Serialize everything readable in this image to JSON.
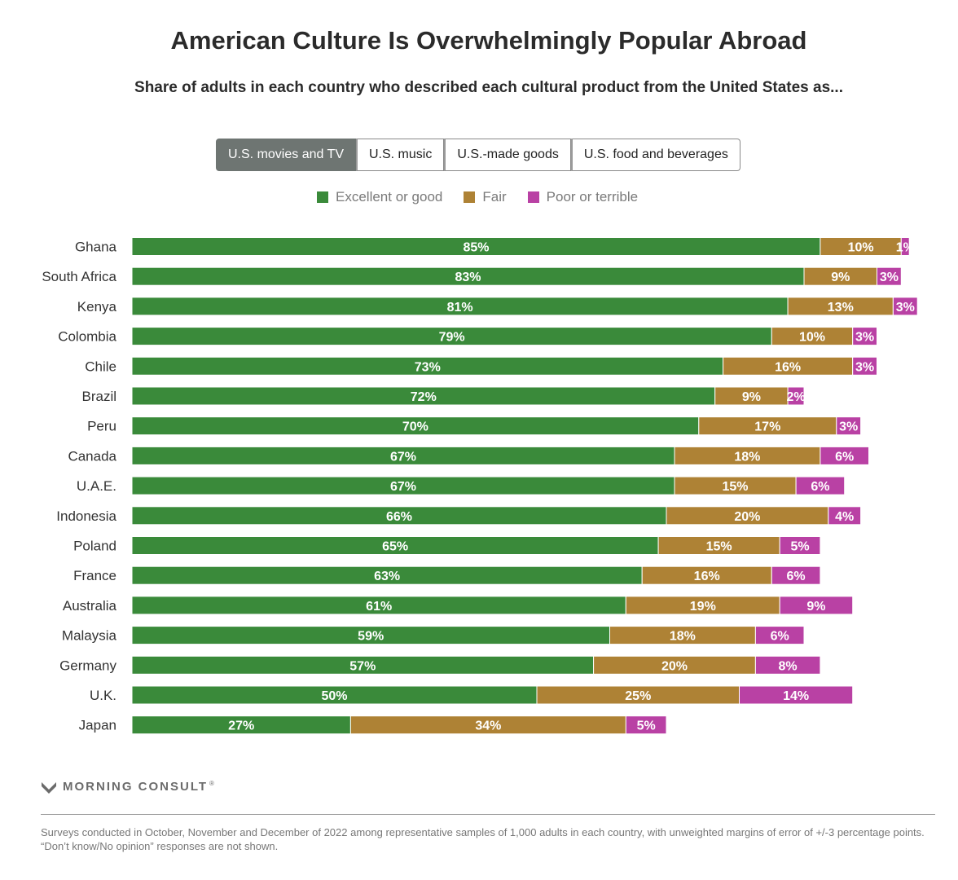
{
  "title": "American Culture Is Overwhelmingly Popular Abroad",
  "subtitle": "Share of adults in each country who described each cultural product from the United States as...",
  "tabs": [
    {
      "label": "U.S. movies and TV",
      "active": true
    },
    {
      "label": "U.S. music",
      "active": false
    },
    {
      "label": "U.S.-made goods",
      "active": false
    },
    {
      "label": "U.S. food and beverages",
      "active": false
    }
  ],
  "legend": [
    {
      "label": "Excellent or good",
      "color": "#3a8a3a"
    },
    {
      "label": "Fair",
      "color": "#ae8235"
    },
    {
      "label": "Poor or terrible",
      "color": "#b941a4"
    }
  ],
  "chart_data": {
    "type": "bar",
    "orientation": "horizontal",
    "stacked": true,
    "categories": [
      "Ghana",
      "South Africa",
      "Kenya",
      "Colombia",
      "Chile",
      "Brazil",
      "Peru",
      "Canada",
      "U.A.E.",
      "Indonesia",
      "Poland",
      "France",
      "Australia",
      "Malaysia",
      "Germany",
      "U.K.",
      "Japan"
    ],
    "series": [
      {
        "name": "Excellent or good",
        "color": "#3a8a3a",
        "values": [
          85,
          83,
          81,
          79,
          73,
          72,
          70,
          67,
          67,
          66,
          65,
          63,
          61,
          59,
          57,
          50,
          27
        ]
      },
      {
        "name": "Fair",
        "color": "#ae8235",
        "values": [
          10,
          9,
          13,
          10,
          16,
          9,
          17,
          18,
          15,
          20,
          15,
          16,
          19,
          18,
          20,
          25,
          34
        ]
      },
      {
        "name": "Poor or terrible",
        "color": "#b941a4",
        "values": [
          1,
          3,
          3,
          3,
          3,
          2,
          3,
          6,
          6,
          4,
          5,
          6,
          9,
          6,
          8,
          14,
          5
        ]
      }
    ],
    "value_suffix": "%",
    "xlim": [
      0,
      100
    ],
    "grid": false,
    "legend_position": "top"
  },
  "brand": {
    "name": "MORNING CONSULT",
    "mark": "®"
  },
  "footnote": "Surveys conducted in October, November and December of 2022 among representative samples of 1,000 adults in each country, with unweighted margins of error of +/-3 percentage points. “Don’t know/No opinion” responses are not shown."
}
